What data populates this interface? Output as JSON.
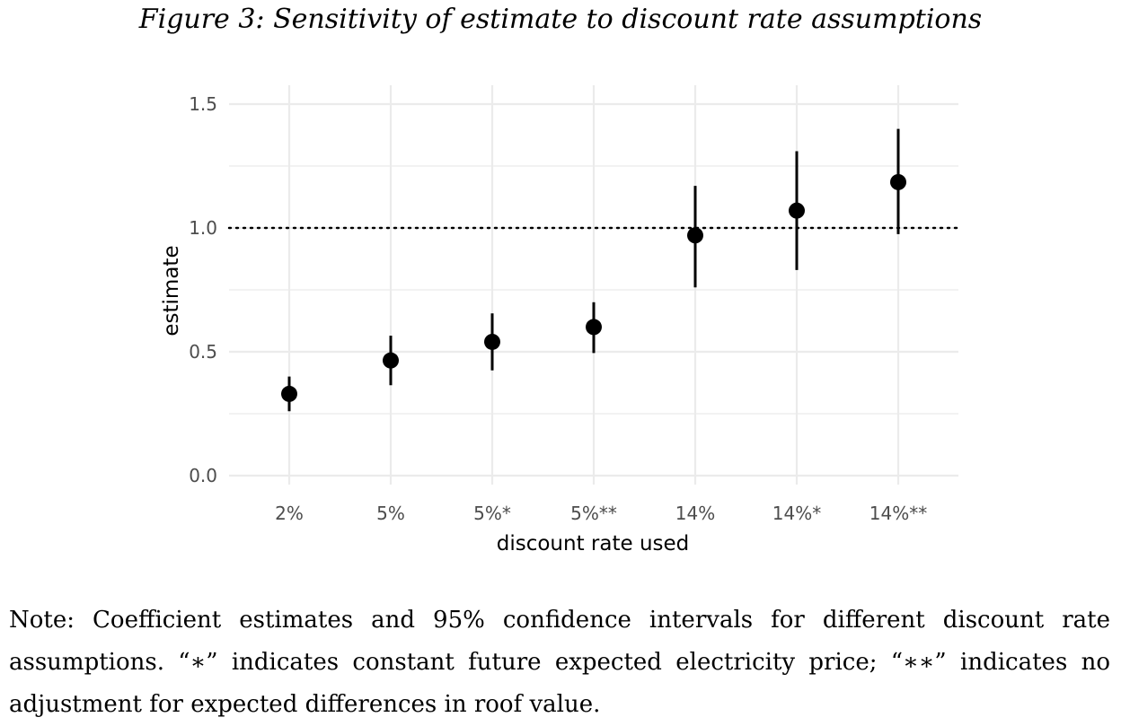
{
  "figure": {
    "title": "Figure 3: Sensitivity of estimate to discount rate assumptions",
    "note": "Note: Coefficient estimates and 95% confidence intervals for different discount rate assumptions. “∗” indicates constant future expected electricity price; “∗∗” indicates no adjustment for expected differences in roof value."
  },
  "chart_data": {
    "type": "scatter",
    "xlabel": "discount rate used",
    "ylabel": "estimate",
    "categories": [
      "2%",
      "5%",
      "5%*",
      "5%**",
      "14%",
      "14%*",
      "14%**"
    ],
    "values": [
      0.33,
      0.465,
      0.54,
      0.6,
      0.97,
      1.07,
      1.185
    ],
    "ci_lower": [
      0.26,
      0.365,
      0.425,
      0.495,
      0.76,
      0.83,
      0.975
    ],
    "ci_upper": [
      0.4,
      0.565,
      0.655,
      0.7,
      1.17,
      1.31,
      1.4
    ],
    "ylim": [
      0,
      1.5
    ],
    "yticks": [
      "0.0",
      "0.5",
      "1.0",
      "1.5"
    ],
    "reference_line": 1.0,
    "grid": true,
    "legend": "none",
    "colors": {
      "point": "#000000",
      "grid": "#ebebeb",
      "axis_text": "#4d4d4d"
    }
  }
}
